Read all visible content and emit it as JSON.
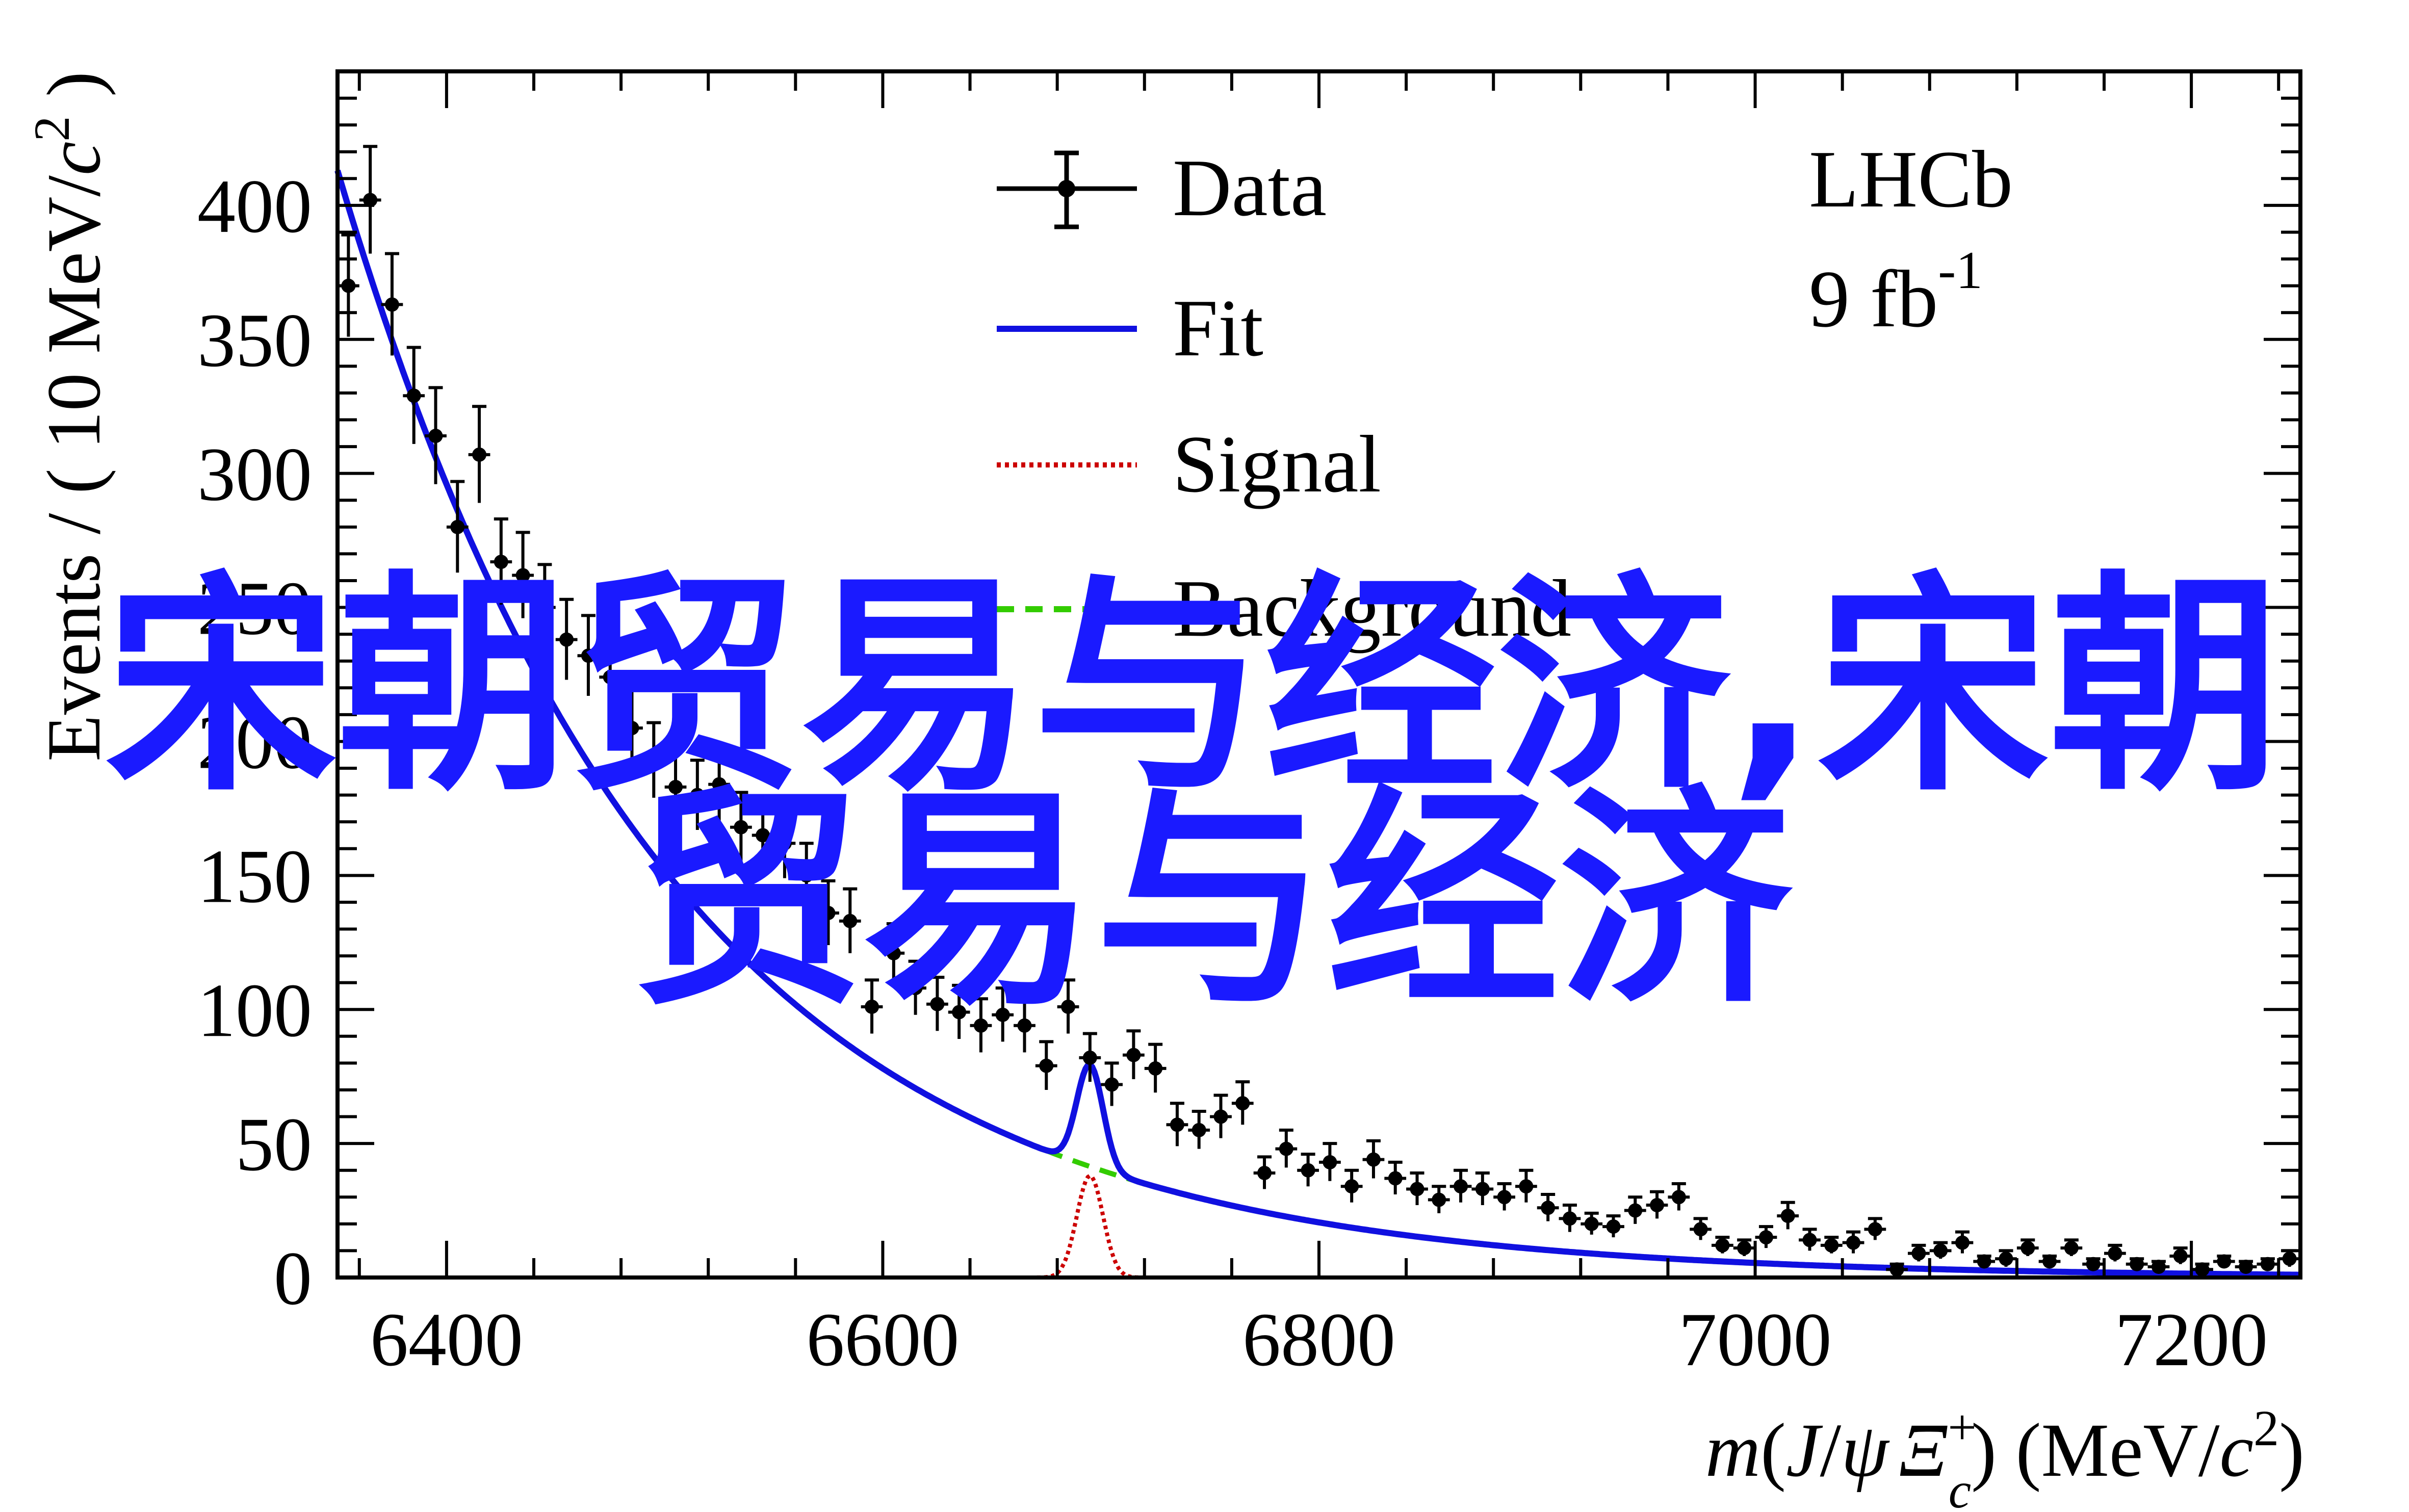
{
  "chart_data": {
    "type": "line",
    "xlabel_parts": {
      "m": "m",
      "open": "(",
      "J": "J",
      "slash": "/",
      "psi": "ψ",
      "Xi": "Ξ",
      "sup": "+",
      "sub": "c",
      "close": ")",
      "unit_open": " (MeV/",
      "unit_c": "c",
      "unit_pow": "2",
      "unit_close": ")"
    },
    "ylabel_parts": {
      "text": "Events / ( 10 MeV/",
      "c": "c",
      "pow": "2",
      "close": " )"
    },
    "xlim": [
      6350,
      7250
    ],
    "ylim": [
      0,
      450
    ],
    "x_ticks": [
      6400,
      6600,
      6800,
      7000,
      7200
    ],
    "y_ticks": [
      0,
      50,
      100,
      150,
      200,
      250,
      300,
      350,
      400
    ],
    "legend": [
      {
        "label": "Data",
        "color": "#000000",
        "style": "errorbar"
      },
      {
        "label": "Fit",
        "color": "#1010e0",
        "style": "solid"
      },
      {
        "label": "Signal",
        "color": "#cc0000",
        "style": "dotted"
      },
      {
        "label": "Background",
        "color": "#33cc00",
        "style": "dashed"
      }
    ],
    "annotation": {
      "line1": "LHCb",
      "line2_base": "9 fb",
      "line2_sup": "-1"
    },
    "data_x": [
      6355,
      6365,
      6375,
      6385,
      6395,
      6405,
      6415,
      6425,
      6435,
      6445,
      6455,
      6465,
      6475,
      6485,
      6495,
      6505,
      6515,
      6525,
      6535,
      6545,
      6555,
      6565,
      6575,
      6585,
      6595,
      6605,
      6615,
      6625,
      6635,
      6645,
      6655,
      6665,
      6675,
      6685,
      6695,
      6705,
      6715,
      6725,
      6735,
      6745,
      6755,
      6765,
      6775,
      6785,
      6795,
      6805,
      6815,
      6825,
      6835,
      6845,
      6855,
      6865,
      6875,
      6885,
      6895,
      6905,
      6915,
      6925,
      6935,
      6945,
      6955,
      6965,
      6975,
      6985,
      6995,
      7005,
      7015,
      7025,
      7035,
      7045,
      7055,
      7065,
      7075,
      7085,
      7095,
      7105,
      7115,
      7125,
      7135,
      7145,
      7155,
      7165,
      7175,
      7185,
      7195,
      7205,
      7215,
      7225,
      7235,
      7245
    ],
    "data_y": [
      370,
      402,
      363,
      329,
      314,
      280,
      307,
      267,
      262,
      250,
      238,
      232,
      224,
      205,
      193,
      183,
      180,
      184,
      168,
      165,
      162,
      150,
      136,
      133,
      101,
      121,
      108,
      102,
      99,
      94,
      98,
      94,
      79,
      101,
      82,
      72,
      83,
      78,
      57,
      55,
      60,
      65,
      39,
      48,
      40,
      43,
      34,
      44,
      37,
      33,
      29,
      34,
      33,
      30,
      34,
      26,
      22,
      20,
      19,
      25,
      27,
      30,
      18,
      12,
      11,
      15,
      23,
      14,
      12,
      13,
      18,
      3,
      9,
      10,
      13,
      6,
      7,
      11,
      6,
      11,
      5,
      9,
      5,
      4,
      8,
      3,
      6,
      4,
      5,
      7
    ],
    "data_err": [
      19,
      20,
      19,
      18,
      18,
      17,
      18,
      16,
      16,
      16,
      15,
      15,
      15,
      14,
      14,
      14,
      13,
      14,
      13,
      13,
      13,
      12,
      12,
      12,
      10,
      11,
      10,
      10,
      10,
      10,
      10,
      10,
      9,
      10,
      9,
      8,
      9,
      9,
      8,
      7,
      8,
      8,
      6,
      7,
      6,
      7,
      6,
      7,
      6,
      6,
      5,
      6,
      6,
      5,
      6,
      5,
      5,
      4,
      4,
      5,
      5,
      5,
      4,
      3,
      3,
      4,
      5,
      4,
      3,
      4,
      4,
      2,
      3,
      3,
      4,
      2,
      3,
      3,
      2,
      3,
      2,
      3,
      2,
      2,
      3,
      2,
      2,
      2,
      2,
      3
    ],
    "fit_params": {
      "bkg_a": 413,
      "bkg_x0": 6350,
      "bkg_tau": 150,
      "sig_mean": 6695,
      "sig_sigma": 6,
      "sig_peak": 38
    }
  },
  "overlay": {
    "line1": "宋朝贸易与经济,宋朝",
    "line2": "贸易与经济"
  }
}
